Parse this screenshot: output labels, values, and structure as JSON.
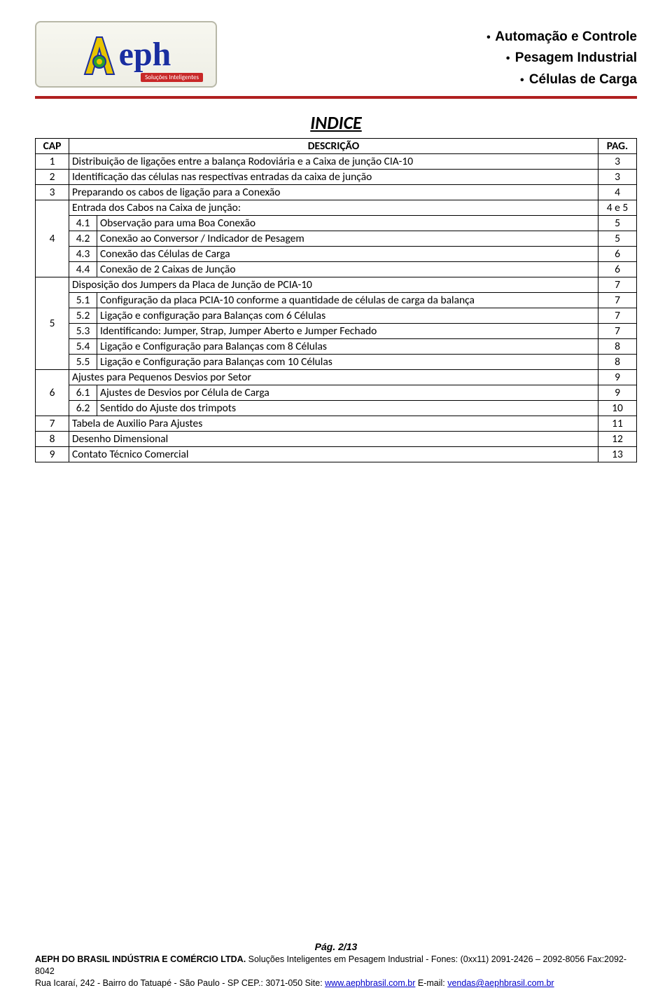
{
  "header": {
    "logo_subtitle": "Soluções Inteligentes",
    "lines": [
      "Automação e Controle",
      "Pesagem Industrial",
      "Células de Carga"
    ]
  },
  "title": "INDICE",
  "table": {
    "columns": {
      "cap": "CAP",
      "desc": "DESCRIÇÃO",
      "pag": "PAG."
    },
    "rows": [
      {
        "cap": "1",
        "sub": "",
        "desc": "Distribuição de ligações entre a balança Rodoviária e a Caixa de junção CIA-10",
        "pag": "3",
        "span": true
      },
      {
        "cap": "2",
        "sub": "",
        "desc": "Identificação das células nas respectivas entradas da caixa de junção",
        "pag": "3",
        "span": true
      },
      {
        "cap": "3",
        "sub": "",
        "desc": "Preparando os cabos de ligação para a Conexão",
        "pag": "4",
        "span": true
      },
      {
        "cap": "4",
        "rowspan": 5,
        "group": [
          {
            "sub": "",
            "desc": "Entrada dos Cabos na Caixa de junção:",
            "pag": "4 e 5",
            "span": true
          },
          {
            "sub": "4.1",
            "desc": "Observação para uma Boa Conexão",
            "pag": "5"
          },
          {
            "sub": "4.2",
            "desc": "Conexão ao Conversor / Indicador de Pesagem",
            "pag": "5"
          },
          {
            "sub": "4.3",
            "desc": "Conexão das Células de Carga",
            "pag": "6"
          },
          {
            "sub": "4.4",
            "desc": "Conexão de 2 Caixas de Junção",
            "pag": "6"
          }
        ]
      },
      {
        "cap": "5",
        "rowspan": 6,
        "group": [
          {
            "sub": "",
            "desc": "Disposição dos Jumpers da Placa de Junção de PCIA-10",
            "pag": "7",
            "span": true
          },
          {
            "sub": "5.1",
            "desc": "Configuração da placa PCIA-10 conforme a quantidade de células de carga da balança",
            "pag": "7"
          },
          {
            "sub": "5.2",
            "desc": "Ligação e configuração para Balanças com 6 Células",
            "pag": "7"
          },
          {
            "sub": "5.3",
            "desc": "Identificando: Jumper, Strap, Jumper Aberto e Jumper Fechado",
            "pag": "7"
          },
          {
            "sub": "5.4",
            "desc": "Ligação e Configuração para Balanças com 8 Células",
            "pag": "8"
          },
          {
            "sub": "5.5",
            "desc": "Ligação e Configuração para Balanças com 10 Células",
            "pag": "8"
          }
        ]
      },
      {
        "cap": "6",
        "rowspan": 3,
        "group": [
          {
            "sub": "",
            "desc": "Ajustes para Pequenos Desvios por Setor",
            "pag": "9",
            "span": true
          },
          {
            "sub": "6.1",
            "desc": "Ajustes de Desvios por Célula de Carga",
            "pag": "9"
          },
          {
            "sub": "6.2",
            "desc": "Sentido do Ajuste dos trimpots",
            "pag": "10"
          }
        ]
      },
      {
        "cap": "7",
        "sub": "",
        "desc": "Tabela de Auxilio Para Ajustes",
        "pag": "11",
        "span": true
      },
      {
        "cap": "8",
        "sub": "",
        "desc": "Desenho Dimensional",
        "pag": "12",
        "span": true
      },
      {
        "cap": "9",
        "sub": "",
        "desc": "Contato Técnico Comercial",
        "pag": "13",
        "span": true
      }
    ]
  },
  "footer": {
    "page_label": "Pág. 2/13",
    "company_bold": "AEPH DO BRASIL INDÚSTRIA E COMÉRCIO LTDA.",
    "line1_rest": " Soluções Inteligentes em Pesagem Industrial - Fones: (0xx11) 2091-2426 – 2092-8056  Fax:2092-8042",
    "line2_pre": "Rua Icaraí, 242    -    Bairro do Tatuapé  -  São  Paulo   -   SP     CEP.: 3071-050       Site: ",
    "site_link": "www.aephbrasil.com.br",
    "line2_mid": "         E-mail: ",
    "email_link": "vendas@aephbrasil.com.br"
  },
  "colors": {
    "divider": "#b02020",
    "logo_blue": "#1a2ea0",
    "logo_yellow": "#e8c400",
    "link": "#0000cc",
    "border": "#000000"
  }
}
